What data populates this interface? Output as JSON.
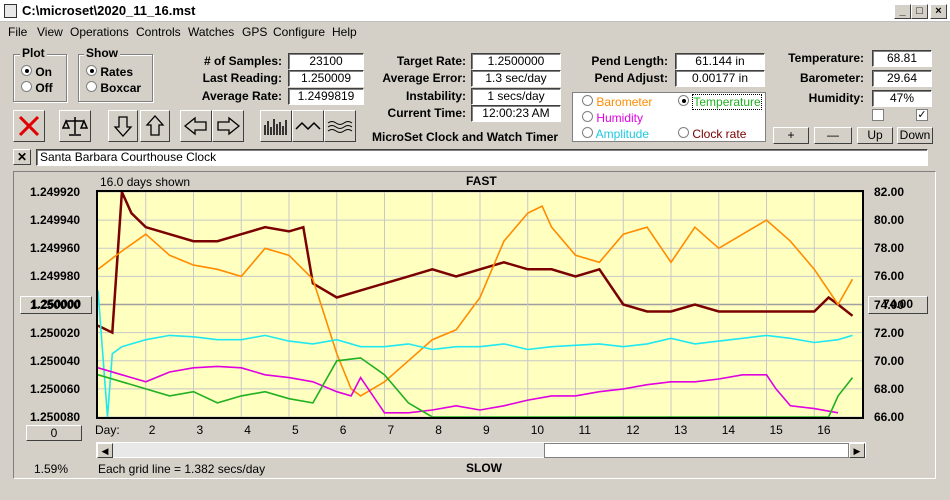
{
  "window": {
    "title": "C:\\microset\\2020_11_16.mst"
  },
  "menu": [
    "File",
    "View",
    "Operations",
    "Controls",
    "Watches",
    "GPS",
    "Configure",
    "Help"
  ],
  "plot_group": {
    "title": "Plot",
    "on": "On",
    "off": "Off"
  },
  "show_group": {
    "title": "Show",
    "rates": "Rates",
    "boxcar": "Boxcar"
  },
  "stats": {
    "samples_label": "# of Samples:",
    "samples": "23100",
    "last_label": "Last Reading:",
    "last": "1.250009",
    "avg_label": "Average Rate:",
    "avg": "1.2499819"
  },
  "timer": {
    "target_label": "Target Rate:",
    "target": "1.2500000",
    "err_label": "Average Error:",
    "err": "1.3 sec/day",
    "inst_label": "Instability:",
    "inst": "1 secs/day",
    "time_label": "Current Time:",
    "time": "12:00:23 AM",
    "app_name": "MicroSet Clock and Watch Timer"
  },
  "pend": {
    "length_label": "Pend Length:",
    "length": "61.144 in",
    "adjust_label": "Pend Adjust:",
    "adjust": "0.00177 in"
  },
  "env": {
    "temp_label": "Temperature:",
    "temp": "68.81",
    "baro_label": "Barometer:",
    "baro": "29.64",
    "hum_label": "Humidity:",
    "hum": "47%"
  },
  "aux_options": {
    "barometer": "Barometer",
    "temperature": "Temperature",
    "humidity": "Humidity",
    "amplitude": "Amplitude",
    "clock_rate": "Clock rate"
  },
  "scale_buttons": {
    "plus": "+",
    "minus": "—",
    "up": "Up",
    "down": "Down"
  },
  "clock_name": "Santa Barbara Courthouse Clock",
  "chart": {
    "days_shown": "16.0 days shown",
    "top_label": "FAST",
    "bottom_label": "SLOW",
    "grid_note": "Each grid line = 1.382 secs/day",
    "percent": "1.59%",
    "day_label": "Day:",
    "left_button": "1.250000",
    "right_button": "74.00",
    "bottom_button": "0"
  },
  "chart_data": {
    "type": "line",
    "title": "",
    "xlabel": "Day:",
    "x_ticks": [
      "2",
      "3",
      "4",
      "5",
      "6",
      "7",
      "8",
      "9",
      "10",
      "11",
      "12",
      "13",
      "14",
      "15",
      "16"
    ],
    "xlim": [
      1.0,
      17.0
    ],
    "y_left_ticks": [
      "1.249920",
      "1.249940",
      "1.249960",
      "1.249980",
      "1.250000",
      "1.250020",
      "1.250040",
      "1.250060",
      "1.250080"
    ],
    "y_right_ticks": [
      "82.00",
      "80.00",
      "78.00",
      "76.00",
      "74.00",
      "72.00",
      "70.00",
      "68.00",
      "66.00"
    ],
    "ylim_right": [
      66,
      82
    ],
    "colors": {
      "rate": "#7b0000",
      "temperature": "#ff8c00",
      "amplitude": "#20e8f0",
      "humidity": "#e000e0",
      "green": "#20b020"
    },
    "series": [
      {
        "name": "Clock rate",
        "color": "#7b0000",
        "unit": "left",
        "x": [
          1.0,
          1.3,
          1.5,
          1.7,
          2.0,
          2.5,
          3.0,
          3.5,
          4.0,
          4.5,
          5.0,
          5.3,
          5.5,
          6.0,
          6.5,
          7.0,
          7.5,
          8.0,
          8.5,
          9.0,
          9.5,
          10.0,
          10.5,
          11.0,
          11.5,
          12.0,
          12.5,
          13.0,
          13.5,
          14.0,
          14.5,
          15.0,
          15.5,
          16.0,
          16.3,
          16.5,
          16.8
        ],
        "y": [
          1.250015,
          1.25002,
          1.249915,
          1.249935,
          1.249945,
          1.24995,
          1.249955,
          1.249955,
          1.24995,
          1.249945,
          1.249948,
          1.249945,
          1.249985,
          1.249995,
          1.24999,
          1.249985,
          1.24998,
          1.249975,
          1.24998,
          1.249975,
          1.24997,
          1.249975,
          1.249975,
          1.24998,
          1.249975,
          1.25,
          1.250005,
          1.250005,
          1.25,
          1.250005,
          1.250005,
          1.250005,
          1.250005,
          1.250005,
          1.249995,
          1.25,
          1.250008
        ]
      },
      {
        "name": "Temperature",
        "color": "#ff8c00",
        "unit": "right",
        "x": [
          1.0,
          1.5,
          2.0,
          2.5,
          3.0,
          3.5,
          4.0,
          4.5,
          5.0,
          5.5,
          6.0,
          6.3,
          6.5,
          7.0,
          7.5,
          8.0,
          8.5,
          9.0,
          9.5,
          10.0,
          10.3,
          10.5,
          11.0,
          11.5,
          12.0,
          12.5,
          13.0,
          13.5,
          14.0,
          14.5,
          15.0,
          15.5,
          16.0,
          16.5,
          16.8
        ],
        "y": [
          76.5,
          77.8,
          79.0,
          77.5,
          76.8,
          76.5,
          76.0,
          78.0,
          77.5,
          75.8,
          70.5,
          68.0,
          67.5,
          68.5,
          70.0,
          71.5,
          72.2,
          74.5,
          78.5,
          80.5,
          81.0,
          79.5,
          77.5,
          77.0,
          79.0,
          79.5,
          77.0,
          79.5,
          78.0,
          79.0,
          80.0,
          78.5,
          76.5,
          74.0,
          75.8
        ]
      },
      {
        "name": "Amplitude",
        "color": "#20e8f0",
        "unit": "right",
        "x": [
          1.0,
          1.2,
          1.3,
          1.5,
          2.0,
          2.5,
          3.0,
          3.5,
          4.0,
          4.5,
          5.0,
          5.5,
          6.0,
          6.5,
          7.0,
          7.5,
          8.0,
          8.5,
          9.0,
          9.5,
          10.0,
          10.5,
          11.0,
          11.5,
          12.0,
          12.5,
          13.0,
          13.5,
          14.0,
          14.5,
          15.0,
          15.5,
          16.0,
          16.5,
          16.8
        ],
        "y": [
          75.0,
          66.0,
          70.5,
          71.0,
          71.5,
          71.8,
          71.7,
          71.5,
          71.5,
          71.8,
          71.4,
          71.2,
          71.5,
          71.0,
          71.0,
          71.2,
          70.8,
          71.0,
          71.0,
          71.2,
          70.8,
          71.0,
          71.1,
          71.2,
          71.0,
          71.2,
          71.6,
          71.2,
          71.4,
          71.6,
          71.8,
          71.6,
          71.3,
          71.5,
          71.8
        ]
      },
      {
        "name": "Humidity",
        "color": "#e000e0",
        "unit": "right",
        "x": [
          1.0,
          1.5,
          2.0,
          2.5,
          3.0,
          3.5,
          4.0,
          4.5,
          5.0,
          5.5,
          6.0,
          6.3,
          6.5,
          7.0,
          7.5,
          8.0,
          8.5,
          9.0,
          9.5,
          10.0,
          10.5,
          11.0,
          11.5,
          12.0,
          12.5,
          13.0,
          13.5,
          14.0,
          14.5,
          15.0,
          15.2,
          15.5,
          16.0,
          16.5
        ],
        "y": [
          69.5,
          69.0,
          68.5,
          69.2,
          69.5,
          69.6,
          69.5,
          69.0,
          68.8,
          68.5,
          67.8,
          67.5,
          68.8,
          66.3,
          66.3,
          66.5,
          66.8,
          66.5,
          66.8,
          67.2,
          67.5,
          67.5,
          67.8,
          68.0,
          68.3,
          68.5,
          68.5,
          68.7,
          69.0,
          69.0,
          68.0,
          66.8,
          66.6,
          66.3
        ]
      },
      {
        "name": "",
        "color": "#20b020",
        "unit": "right",
        "x": [
          1.0,
          1.5,
          2.0,
          2.5,
          3.0,
          3.5,
          4.0,
          4.5,
          5.0,
          5.5,
          6.0,
          6.5,
          7.0,
          7.5,
          8.0,
          9.0,
          10.0,
          11.0,
          12.0,
          13.0,
          14.0,
          15.0,
          16.0,
          16.3,
          16.5,
          16.8
        ],
        "y": [
          69.0,
          68.5,
          68.0,
          67.5,
          67.8,
          67.0,
          67.5,
          67.8,
          67.3,
          67.0,
          70.0,
          70.2,
          69.0,
          67.0,
          65.9,
          65.9,
          65.9,
          65.9,
          65.9,
          65.9,
          65.9,
          65.9,
          65.9,
          65.9,
          67.5,
          68.8
        ]
      }
    ]
  }
}
